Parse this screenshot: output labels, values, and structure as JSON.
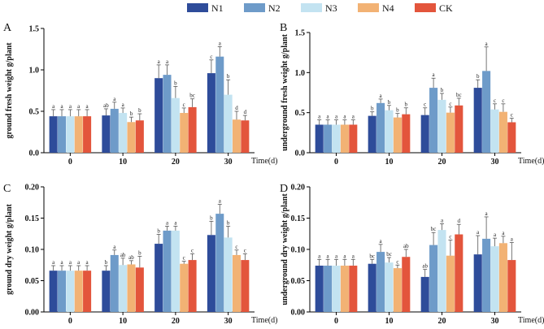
{
  "legend": [
    "N1",
    "N2",
    "N3",
    "N4",
    "CK"
  ],
  "colors": [
    "#2e4c9a",
    "#6e9bc9",
    "#c3e3f1",
    "#f2b274",
    "#e3553c"
  ],
  "chart_data": [
    {
      "type": "bar",
      "panel": "A",
      "ylabel": "ground fresh weight g/plant",
      "xlabel": "Time(d)",
      "categories": [
        "0",
        "10",
        "20",
        "30"
      ],
      "ylim": [
        0,
        1.5
      ],
      "yticks": [
        "0.0",
        "0.5",
        "1.0",
        "1.5"
      ],
      "series": [
        {
          "name": "N1",
          "values": [
            0.44,
            0.45,
            0.9,
            0.96
          ],
          "err": [
            0.08,
            0.08,
            0.16,
            0.16
          ],
          "sig": [
            "a",
            "ab",
            "a",
            "c"
          ]
        },
        {
          "name": "N2",
          "values": [
            0.44,
            0.53,
            0.94,
            1.16
          ],
          "err": [
            0.08,
            0.08,
            0.12,
            0.12
          ],
          "sig": [
            "a",
            "a",
            "a",
            "a"
          ]
        },
        {
          "name": "N3",
          "values": [
            0.44,
            0.48,
            0.66,
            0.7
          ],
          "err": [
            0.08,
            0.06,
            0.14,
            0.18
          ],
          "sig": [
            "a",
            "a",
            "b",
            "b"
          ]
        },
        {
          "name": "N4",
          "values": [
            0.44,
            0.37,
            0.48,
            0.4
          ],
          "err": [
            0.08,
            0.06,
            0.06,
            0.1
          ],
          "sig": [
            "a",
            "b",
            "c",
            "d"
          ]
        },
        {
          "name": "CK",
          "values": [
            0.44,
            0.39,
            0.55,
            0.39
          ],
          "err": [
            0.08,
            0.08,
            0.1,
            0.06
          ],
          "sig": [
            "a",
            "b",
            "bc",
            "d"
          ]
        }
      ]
    },
    {
      "type": "bar",
      "panel": "B",
      "ylabel": "underground fresh weight g/plant",
      "xlabel": "Time(d)",
      "categories": [
        "0",
        "10",
        "20",
        "30"
      ],
      "ylim": [
        0,
        1.5
      ],
      "yticks": [
        "0.0",
        "0.5",
        "1.0",
        "1.5"
      ],
      "series": [
        {
          "name": "N1",
          "values": [
            0.35,
            0.46,
            0.47,
            0.81
          ],
          "err": [
            0.06,
            0.05,
            0.09,
            0.1
          ],
          "sig": [
            "a",
            "b",
            "c",
            "b"
          ]
        },
        {
          "name": "N2",
          "values": [
            0.35,
            0.62,
            0.81,
            1.02
          ],
          "err": [
            0.06,
            0.05,
            0.12,
            0.3
          ],
          "sig": [
            "a",
            "a",
            "a",
            "a"
          ]
        },
        {
          "name": "N3",
          "values": [
            0.35,
            0.53,
            0.66,
            0.54
          ],
          "err": [
            0.06,
            0.06,
            0.08,
            0.07
          ],
          "sig": [
            "a",
            "b",
            "b",
            "c"
          ]
        },
        {
          "name": "N4",
          "values": [
            0.35,
            0.44,
            0.5,
            0.51
          ],
          "err": [
            0.06,
            0.05,
            0.07,
            0.1
          ],
          "sig": [
            "a",
            "b",
            "c",
            "c"
          ]
        },
        {
          "name": "CK",
          "values": [
            0.35,
            0.48,
            0.59,
            0.38
          ],
          "err": [
            0.06,
            0.08,
            0.09,
            0.05
          ],
          "sig": [
            "a",
            "b",
            "bc",
            "c"
          ]
        }
      ]
    },
    {
      "type": "bar",
      "panel": "C",
      "ylabel": "ground dry weight g/plant",
      "xlabel": "Time(d)",
      "categories": [
        "0",
        "10",
        "20",
        "30"
      ],
      "ylim": [
        0,
        0.2
      ],
      "yticks": [
        "0.00",
        "0.05",
        "0.10",
        "0.15",
        "0.20"
      ],
      "series": [
        {
          "name": "N1",
          "values": [
            0.066,
            0.066,
            0.109,
            0.123
          ],
          "err": [
            0.008,
            0.008,
            0.015,
            0.022
          ],
          "sig": [
            "a",
            "b",
            "b",
            "b"
          ]
        },
        {
          "name": "N2",
          "values": [
            0.066,
            0.091,
            0.13,
            0.157
          ],
          "err": [
            0.008,
            0.008,
            0.007,
            0.015
          ],
          "sig": [
            "a",
            "a",
            "a",
            "a"
          ]
        },
        {
          "name": "N3",
          "values": [
            0.066,
            0.075,
            0.13,
            0.119
          ],
          "err": [
            0.008,
            0.011,
            0.007,
            0.018
          ],
          "sig": [
            "a",
            "ab",
            "a",
            "b"
          ]
        },
        {
          "name": "N4",
          "values": [
            0.066,
            0.076,
            0.077,
            0.091
          ],
          "err": [
            0.008,
            0.006,
            0.004,
            0.008
          ],
          "sig": [
            "a",
            "ab",
            "c",
            "c"
          ]
        },
        {
          "name": "CK",
          "values": [
            0.066,
            0.071,
            0.083,
            0.083
          ],
          "err": [
            0.008,
            0.018,
            0.01,
            0.01
          ],
          "sig": [
            "a",
            "b",
            "c",
            "c"
          ]
        }
      ]
    },
    {
      "type": "bar",
      "panel": "D",
      "ylabel": "underground dry weight g/plant",
      "xlabel": "Time(d)",
      "categories": [
        "0",
        "10",
        "20",
        "30"
      ],
      "ylim": [
        0,
        0.2
      ],
      "yticks": [
        "0.00",
        "0.05",
        "0.10",
        "0.15",
        "0.20"
      ],
      "series": [
        {
          "name": "N1",
          "values": [
            0.074,
            0.077,
            0.056,
            0.092
          ],
          "err": [
            0.01,
            0.007,
            0.012,
            0.03
          ],
          "sig": [
            "a",
            "bc",
            "ab",
            "a"
          ]
        },
        {
          "name": "N2",
          "values": [
            0.074,
            0.096,
            0.107,
            0.117
          ],
          "err": [
            0.01,
            0.012,
            0.02,
            0.035
          ],
          "sig": [
            "a",
            "a",
            "bc",
            "a"
          ]
        },
        {
          "name": "N3",
          "values": [
            0.074,
            0.079,
            0.131,
            0.105
          ],
          "err": [
            0.01,
            0.008,
            0.01,
            0.013
          ],
          "sig": [
            "a",
            "bc",
            "a",
            "a"
          ]
        },
        {
          "name": "N4",
          "values": [
            0.074,
            0.07,
            0.09,
            0.11
          ],
          "err": [
            0.01,
            0.005,
            0.025,
            0.011
          ],
          "sig": [
            "a",
            "c",
            "c",
            "a"
          ]
        },
        {
          "name": "CK",
          "values": [
            0.074,
            0.088,
            0.124,
            0.083
          ],
          "err": [
            0.01,
            0.012,
            0.016,
            0.028
          ],
          "sig": [
            "a",
            "ab",
            "d",
            "a"
          ]
        }
      ]
    }
  ]
}
